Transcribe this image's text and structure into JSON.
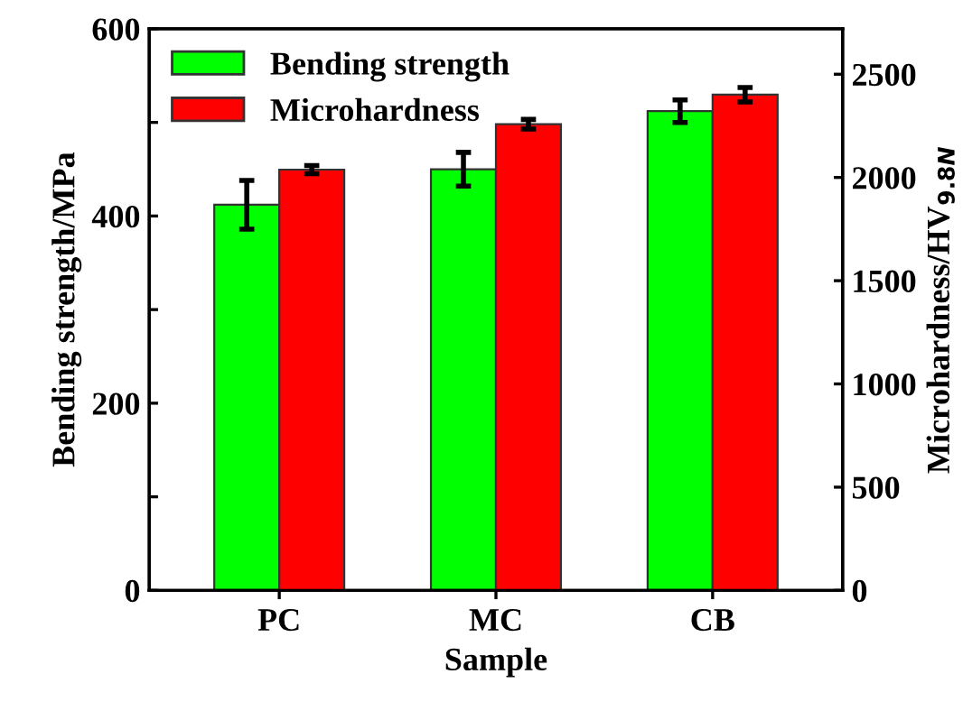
{
  "chart_data": {
    "type": "bar",
    "xlabel": "Sample",
    "ylabel": "Bending strength/MPa",
    "y2label": "Microhardness/HV$_{9.8N}$",
    "categories": [
      "PC",
      "MC",
      "CB"
    ],
    "series": [
      {
        "name": "Bending strength",
        "color": "#00ff00",
        "values": [
          412,
          450,
          512
        ],
        "errors": [
          26,
          18,
          12
        ]
      },
      {
        "name": "Microhardness",
        "color": "#ff0000",
        "values": [
          2038,
          2258,
          2401
        ],
        "errors": [
          20,
          23,
          35
        ],
        "axis": "y2"
      }
    ],
    "ylim": [
      0,
      600
    ],
    "yticks": [
      0,
      {
        "value": 100,
        "label": null
      },
      200,
      {
        "value": 300,
        "label": null
      },
      400,
      {
        "value": 500,
        "label": null
      },
      600
    ],
    "y2lim": [
      0,
      2720
    ],
    "y2ticks": [
      0,
      500,
      1000,
      1500,
      2000,
      2500
    ],
    "legend": "top left",
    "grid": false
  }
}
